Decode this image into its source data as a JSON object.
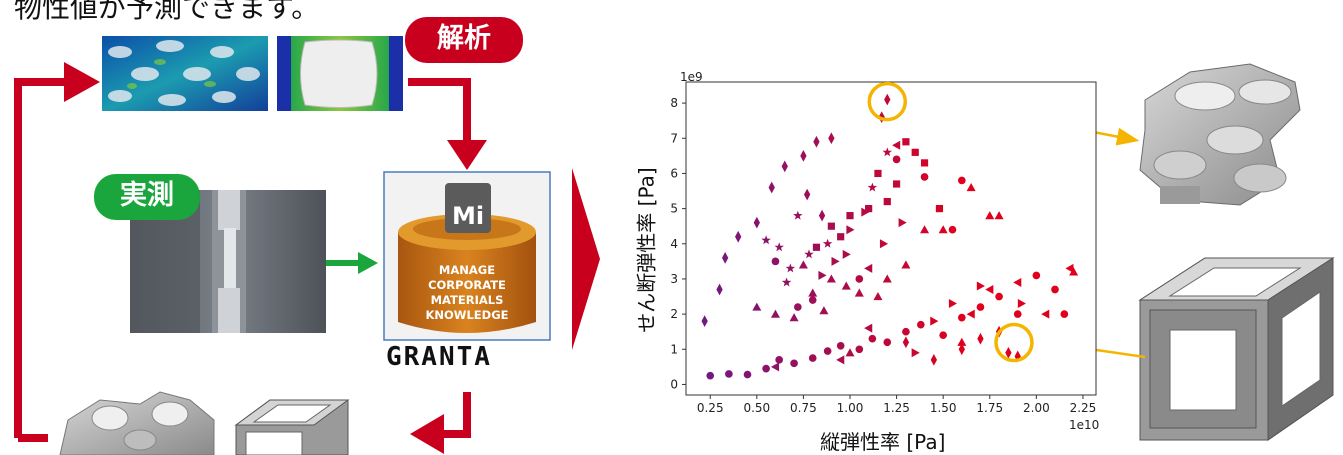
{
  "header_text": "物性値が予測できます。",
  "badges": {
    "analysis": "解析",
    "measurement": "実測"
  },
  "granta": {
    "logo_mark": "Mi",
    "lines": [
      "MANAGE",
      "CORPORATE",
      "MATERIALS",
      "KNOWLEDGE"
    ],
    "wordmark": "GRANTA"
  },
  "colors": {
    "red_arrow": "#c8001e",
    "green_arrow": "#1aa63c",
    "highlight_circle": "#f5b400",
    "pointer_arrow": "#f5b400"
  },
  "chart_data": {
    "type": "scatter",
    "xlabel": "縦弾性率 [Pa]",
    "ylabel": "せん断弾性率 [Pa]",
    "x_exponent": "1e10",
    "y_exponent": "1e9",
    "xlim": [
      0.12,
      2.32
    ],
    "ylim": [
      -0.3,
      8.6
    ],
    "xticks": [
      "0.25",
      "0.50",
      "0.75",
      "1.00",
      "1.25",
      "1.50",
      "1.75",
      "2.00",
      "2.25"
    ],
    "yticks": [
      "0",
      "1",
      "2",
      "3",
      "4",
      "5",
      "6",
      "7",
      "8"
    ],
    "color_scale": [
      "#6d1a85",
      "#e0001b"
    ],
    "series": [
      {
        "marker": "diamond",
        "points": [
          [
            0.22,
            1.8
          ],
          [
            0.3,
            2.7
          ],
          [
            0.33,
            3.6
          ],
          [
            0.4,
            4.2
          ],
          [
            0.5,
            4.6
          ],
          [
            0.58,
            5.6
          ],
          [
            0.65,
            6.2
          ],
          [
            0.75,
            6.5
          ],
          [
            0.82,
            6.9
          ],
          [
            0.9,
            7.0
          ],
          [
            0.77,
            5.4
          ],
          [
            0.85,
            4.8
          ],
          [
            1.2,
            8.1
          ],
          [
            1.17,
            7.6
          ],
          [
            1.6,
            1.0
          ],
          [
            1.7,
            1.3
          ],
          [
            1.85,
            0.9
          ],
          [
            1.9,
            0.8
          ],
          [
            1.8,
            1.5
          ],
          [
            1.3,
            1.2
          ],
          [
            1.45,
            0.7
          ]
        ]
      },
      {
        "marker": "circle",
        "points": [
          [
            0.25,
            0.25
          ],
          [
            0.35,
            0.3
          ],
          [
            0.45,
            0.28
          ],
          [
            0.55,
            0.45
          ],
          [
            0.62,
            0.7
          ],
          [
            0.7,
            0.6
          ],
          [
            0.8,
            0.75
          ],
          [
            0.88,
            0.95
          ],
          [
            0.95,
            1.1
          ],
          [
            1.05,
            1.0
          ],
          [
            1.12,
            1.3
          ],
          [
            1.2,
            1.2
          ],
          [
            1.3,
            1.5
          ],
          [
            1.38,
            1.7
          ],
          [
            1.5,
            1.4
          ],
          [
            1.6,
            1.9
          ],
          [
            1.7,
            2.2
          ],
          [
            1.8,
            2.5
          ],
          [
            1.9,
            2.0
          ],
          [
            2.0,
            3.1
          ],
          [
            2.1,
            2.7
          ],
          [
            2.15,
            2.0
          ],
          [
            1.25,
            6.4
          ],
          [
            1.4,
            5.9
          ],
          [
            1.6,
            5.8
          ],
          [
            0.8,
            2.4
          ],
          [
            0.72,
            2.2
          ],
          [
            1.05,
            3.0
          ],
          [
            1.55,
            4.4
          ],
          [
            0.6,
            3.5
          ]
        ]
      },
      {
        "marker": "triangle",
        "points": [
          [
            0.5,
            2.2
          ],
          [
            0.6,
            2.0
          ],
          [
            0.7,
            1.9
          ],
          [
            0.8,
            2.6
          ],
          [
            0.9,
            3.0
          ],
          [
            0.98,
            2.8
          ],
          [
            1.05,
            2.6
          ],
          [
            1.15,
            2.5
          ],
          [
            1.2,
            3.0
          ],
          [
            1.3,
            3.4
          ],
          [
            1.4,
            4.4
          ],
          [
            1.5,
            4.4
          ],
          [
            1.75,
            4.8
          ],
          [
            1.8,
            4.8
          ],
          [
            1.65,
            5.6
          ],
          [
            0.75,
            3.4
          ],
          [
            0.86,
            2.1
          ],
          [
            1.6,
            1.2
          ],
          [
            2.2,
            3.2
          ],
          [
            1.0,
            0.9
          ]
        ]
      },
      {
        "marker": "square",
        "points": [
          [
            1.15,
            6.0
          ],
          [
            1.25,
            5.7
          ],
          [
            1.3,
            6.9
          ],
          [
            1.35,
            6.6
          ],
          [
            1.2,
            5.2
          ],
          [
            1.1,
            5.0
          ],
          [
            1.0,
            4.8
          ],
          [
            0.95,
            4.2
          ],
          [
            0.9,
            4.5
          ],
          [
            0.82,
            3.9
          ],
          [
            1.4,
            6.3
          ],
          [
            1.48,
            5.0
          ]
        ]
      },
      {
        "marker": "tri_right",
        "points": [
          [
            0.92,
            3.5
          ],
          [
            1.0,
            4.4
          ],
          [
            1.08,
            4.9
          ],
          [
            1.18,
            4.0
          ],
          [
            1.28,
            4.6
          ],
          [
            0.85,
            3.1
          ],
          [
            0.98,
            3.7
          ],
          [
            1.45,
            1.8
          ],
          [
            1.55,
            2.3
          ],
          [
            1.7,
            2.8
          ],
          [
            1.92,
            2.3
          ],
          [
            1.35,
            0.9
          ]
        ]
      },
      {
        "marker": "tri_left",
        "points": [
          [
            1.25,
            6.8
          ],
          [
            1.1,
            3.3
          ],
          [
            1.65,
            2.0
          ],
          [
            1.75,
            2.7
          ],
          [
            1.9,
            2.9
          ],
          [
            2.05,
            2.0
          ],
          [
            2.18,
            3.3
          ],
          [
            0.6,
            0.5
          ],
          [
            0.95,
            0.7
          ],
          [
            1.1,
            1.6
          ]
        ]
      },
      {
        "marker": "star",
        "points": [
          [
            0.55,
            4.1
          ],
          [
            0.62,
            3.9
          ],
          [
            0.68,
            3.3
          ],
          [
            0.72,
            4.8
          ],
          [
            0.78,
            3.7
          ],
          [
            0.88,
            4.0
          ],
          [
            1.12,
            5.6
          ],
          [
            1.2,
            6.6
          ],
          [
            0.66,
            2.9
          ]
        ]
      }
    ],
    "highlights": [
      [
        1.2,
        8.1
      ],
      [
        1.88,
        1.25
      ]
    ]
  }
}
